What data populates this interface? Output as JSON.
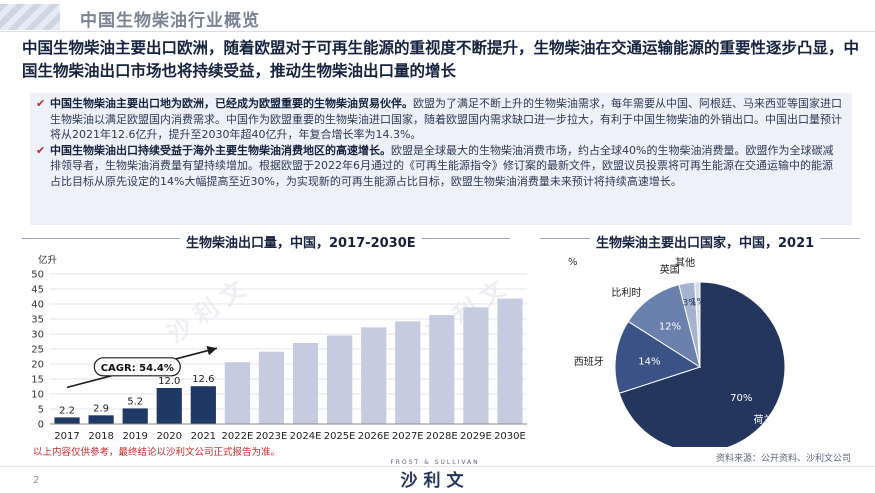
{
  "header": {
    "title": "中国生物柴油行业概览"
  },
  "headline": "中国生物柴油主要出口欧洲，随着欧盟对于可再生能源的重视度不断提升，生物柴油在交通运输能源的重要性逐步凸显，中国生物柴油出口市场也将持续受益，推动生物柴油出口量的增长",
  "summary": {
    "bullets": [
      {
        "lead": "中国生物柴油主要出口地为欧洲，已经成为欧盟重要的生物柴油贸易伙伴。",
        "text": "欧盟为了满足不断上升的生物柴油需求，每年需要从中国、阿根廷、马来西亚等国家进口生物柴油以满足欧盟国内消费需求。中国作为欧盟重要的生物柴油进口国家，随着欧盟国内需求缺口进一步拉大，有利于中国生物柴油的外销出口。中国出口量预计将从2021年12.6亿升，提升至2030年超40亿升，年复合增长率为14.3%。"
      },
      {
        "lead": "中国生物柴油出口持续受益于海外主要生物柴油消费地区的高速增长。",
        "text": "欧盟是全球最大的生物柴油消费市场，约占全球40%的生物柴油消费量。欧盟作为全球碳减排领导者，生物柴油消费量有望持续增加。根据欧盟于2022年6月通过的《可再生能源指令》修订案的最新文件，欧盟议员投票将可再生能源在交通运输中的能源占比目标从原先设定的14%大幅提高至近30%，为实现新的可再生能源占比目标，欧盟生物柴油消费量未来预计将持续高速增长。"
      }
    ]
  },
  "chart_data": [
    {
      "type": "bar",
      "title": "生物柴油出口量，中国，2017-2030E",
      "ylabel": "亿升",
      "ylim": [
        0,
        50
      ],
      "yticks": [
        0,
        5,
        10,
        15,
        20,
        25,
        30,
        35,
        40,
        45,
        50
      ],
      "categories": [
        "2017",
        "2018",
        "2019",
        "2020",
        "2021",
        "2022E",
        "2023E",
        "2024E",
        "2025E",
        "2026E",
        "2027E",
        "2028E",
        "2029E",
        "2030E"
      ],
      "values": [
        2.2,
        2.9,
        5.2,
        12.0,
        12.6,
        20.6,
        24.1,
        27.0,
        29.5,
        32.2,
        34.2,
        36.3,
        38.9,
        41.8
      ],
      "data_labels": [
        "2.2",
        "2.9",
        "5.2",
        "12.0",
        "12.6",
        "",
        "",
        "",
        "",
        "",
        "",
        "",
        "",
        ""
      ],
      "actual_count": 5,
      "annotation": "CAGR: 54.4%",
      "colors": {
        "actual": "#1f3864",
        "forecast": "#c5cce0"
      },
      "grid": true
    },
    {
      "type": "pie",
      "title": "生物柴油主要出口国家，中国，2021",
      "unit": "%",
      "slices": [
        {
          "label": "荷兰",
          "value": 70,
          "value_label": "70%",
          "color": "#24355e"
        },
        {
          "label": "西班牙",
          "value": 14,
          "value_label": "14%",
          "color": "#3a5285"
        },
        {
          "label": "比利时",
          "value": 12,
          "value_label": "12%",
          "color": "#6a80ad"
        },
        {
          "label": "英国",
          "value": 3,
          "value_label": "3%",
          "color": "#a5b3cf"
        },
        {
          "label": "其他",
          "value": 1,
          "value_label": "1%",
          "color": "#d5dbe8"
        }
      ]
    }
  ],
  "footer": {
    "note": "以上内容仅供参考，最终结论以沙利文公司正式报告为准。",
    "source": "资料来源：公开资料、沙利文公司",
    "page": "2",
    "logo_small": "FROST & SULLIVAN",
    "logo_big": "沙利文"
  }
}
